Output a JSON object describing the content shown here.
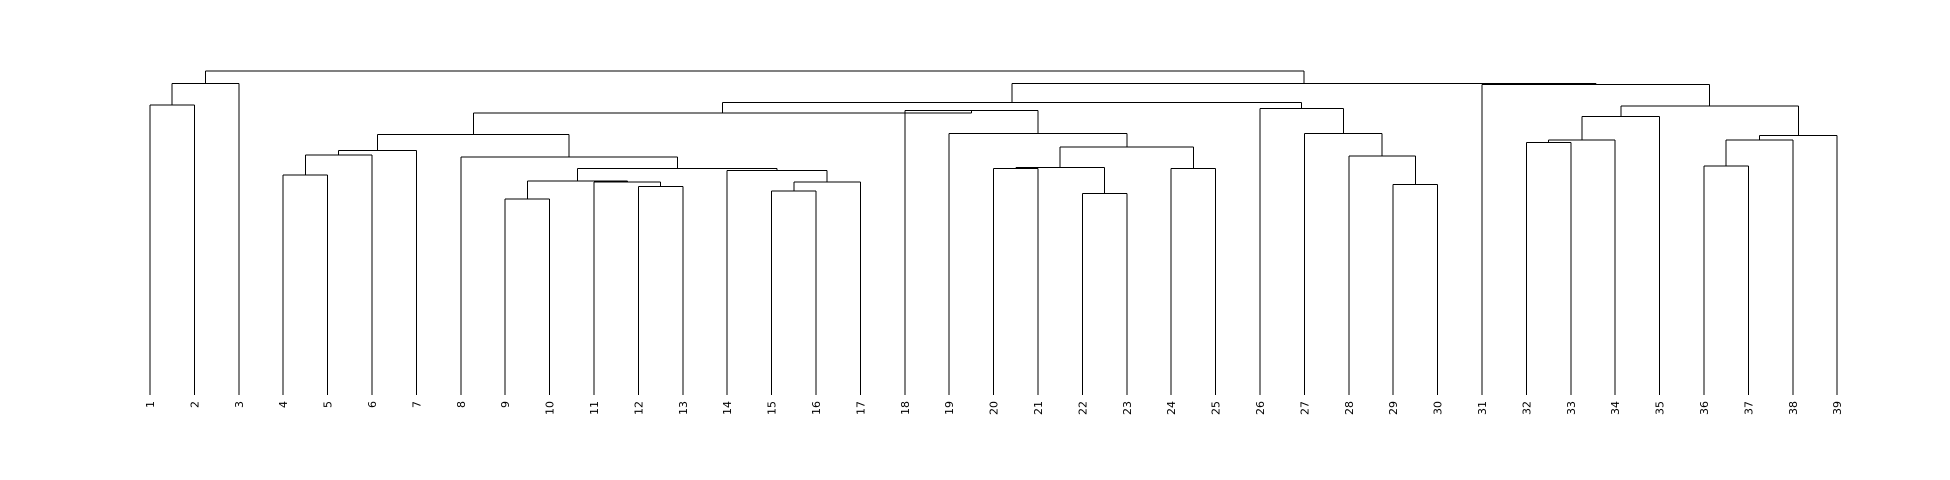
{
  "chart_data": {
    "type": "dendrogram",
    "orientation": "vertical",
    "title": "",
    "xlabel": "",
    "ylabel": "",
    "leaves": [
      "1",
      "2",
      "3",
      "4",
      "5",
      "6",
      "7",
      "8",
      "9",
      "10",
      "11",
      "12",
      "13",
      "14",
      "15",
      "16",
      "17",
      "18",
      "19",
      "20",
      "21",
      "22",
      "23",
      "24",
      "25",
      "26",
      "27",
      "28",
      "29",
      "30",
      "31",
      "32",
      "33",
      "34",
      "35",
      "36",
      "37",
      "38",
      "39"
    ],
    "height_range": [
      0,
      30
    ],
    "merges": [
      {
        "left": "L1",
        "right": "L2",
        "height": 25.6,
        "id": "m1"
      },
      {
        "left": "m1",
        "right": "L3",
        "height": 27.5,
        "id": "m2"
      },
      {
        "left": "L4",
        "right": "L5",
        "height": 19.4,
        "id": "m3"
      },
      {
        "left": "m3",
        "right": "L6",
        "height": 21.2,
        "id": "m4"
      },
      {
        "left": "m4",
        "right": "L7",
        "height": 21.6,
        "id": "m5"
      },
      {
        "left": "L9",
        "right": "L10",
        "height": 17.3,
        "id": "m6"
      },
      {
        "left": "L12",
        "right": "L13",
        "height": 18.4,
        "id": "m7"
      },
      {
        "left": "L11",
        "right": "m7",
        "height": 18.8,
        "id": "m8"
      },
      {
        "left": "m6",
        "right": "m8",
        "height": 18.9,
        "id": "m9"
      },
      {
        "left": "L15",
        "right": "L16",
        "height": 18.0,
        "id": "m10"
      },
      {
        "left": "m10",
        "right": "L17",
        "height": 18.8,
        "id": "m11"
      },
      {
        "left": "L14",
        "right": "m11",
        "height": 19.8,
        "id": "m12"
      },
      {
        "left": "m9",
        "right": "m12",
        "height": 20.0,
        "id": "m13"
      },
      {
        "left": "L8",
        "right": "m13",
        "height": 21.0,
        "id": "m14"
      },
      {
        "left": "m5",
        "right": "m14",
        "height": 23.0,
        "id": "m15"
      },
      {
        "left": "L20",
        "right": "L21",
        "height": 20.0,
        "id": "m16"
      },
      {
        "left": "L22",
        "right": "L23",
        "height": 17.8,
        "id": "m17"
      },
      {
        "left": "m16",
        "right": "m17",
        "height": 20.1,
        "id": "m18"
      },
      {
        "left": "L24",
        "right": "L25",
        "height": 20.0,
        "id": "m19"
      },
      {
        "left": "m18",
        "right": "m19",
        "height": 21.9,
        "id": "m20"
      },
      {
        "left": "L19",
        "right": "m20",
        "height": 23.1,
        "id": "m21"
      },
      {
        "left": "L18",
        "right": "m21",
        "height": 25.1,
        "id": "m22"
      },
      {
        "left": "m15",
        "right": "m22",
        "height": 24.9,
        "id": "m23"
      },
      {
        "left": "L29",
        "right": "L30",
        "height": 18.6,
        "id": "m24"
      },
      {
        "left": "L28",
        "right": "m24",
        "height": 21.1,
        "id": "m25"
      },
      {
        "left": "L27",
        "right": "m25",
        "height": 23.1,
        "id": "m26"
      },
      {
        "left": "L26",
        "right": "m26",
        "height": 25.3,
        "id": "m27"
      },
      {
        "left": "m23",
        "right": "m27",
        "height": 25.8,
        "id": "m28"
      },
      {
        "left": "L32",
        "right": "L33",
        "height": 22.3,
        "id": "m29"
      },
      {
        "left": "m29",
        "right": "L34",
        "height": 22.5,
        "id": "m30"
      },
      {
        "left": "m30",
        "right": "L35",
        "height": 24.6,
        "id": "m31"
      },
      {
        "left": "L36",
        "right": "L37",
        "height": 20.2,
        "id": "m32"
      },
      {
        "left": "m32",
        "right": "L38",
        "height": 22.5,
        "id": "m33"
      },
      {
        "left": "m33",
        "right": "L39",
        "height": 22.9,
        "id": "m34"
      },
      {
        "left": "m31",
        "right": "m34",
        "height": 25.5,
        "id": "m35"
      },
      {
        "left": "L31",
        "right": "m35",
        "height": 27.4,
        "id": "m36"
      },
      {
        "left": "m28",
        "right": "m36",
        "height": 27.5,
        "id": "m37"
      },
      {
        "left": "m2",
        "right": "m37",
        "height": 28.6,
        "id": "m38"
      }
    ]
  }
}
